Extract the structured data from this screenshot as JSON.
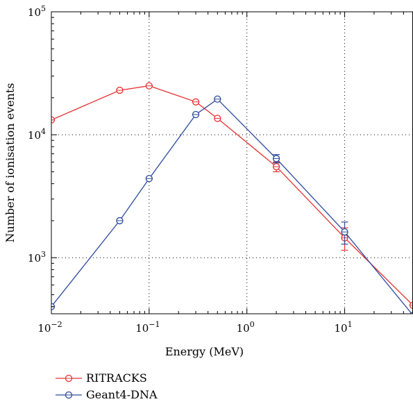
{
  "chart_data": {
    "type": "line",
    "title": "",
    "xlabel": "Energy (MeV)",
    "ylabel": "Number of ionisation events",
    "x_scale": "log",
    "y_scale": "log",
    "xlim": [
      0.01,
      50
    ],
    "ylim": [
      350,
      100000
    ],
    "x_ticks": [
      {
        "value": 0.01,
        "base": "10",
        "exp": "−2"
      },
      {
        "value": 0.1,
        "base": "10",
        "exp": "−1"
      },
      {
        "value": 1,
        "base": "10",
        "exp": "0"
      },
      {
        "value": 10,
        "base": "10",
        "exp": "1"
      }
    ],
    "y_ticks": [
      {
        "value": 1000,
        "base": "10",
        "exp": "3"
      },
      {
        "value": 10000,
        "base": "10",
        "exp": "4"
      },
      {
        "value": 100000,
        "base": "10",
        "exp": "5"
      }
    ],
    "grid": true,
    "legend_position": "bottom-left, below plot",
    "series": [
      {
        "name": "RITRACKS",
        "color": "#e8302f",
        "x": [
          0.01,
          0.05,
          0.1,
          0.3,
          0.5,
          2,
          10,
          50
        ],
        "y": [
          13200,
          23000,
          25000,
          18500,
          13600,
          5500,
          1450,
          410
        ],
        "err": [
          0,
          0,
          0,
          0,
          0,
          500,
          300,
          0
        ]
      },
      {
        "name": "Geant4-DNA",
        "color": "#2c4a9e",
        "x": [
          0.01,
          0.05,
          0.1,
          0.3,
          0.5,
          2,
          10,
          50
        ],
        "y": [
          400,
          2000,
          4400,
          14600,
          19500,
          6400,
          1620,
          340
        ],
        "err": [
          0,
          0,
          0,
          0,
          0,
          500,
          330,
          0
        ]
      }
    ]
  }
}
